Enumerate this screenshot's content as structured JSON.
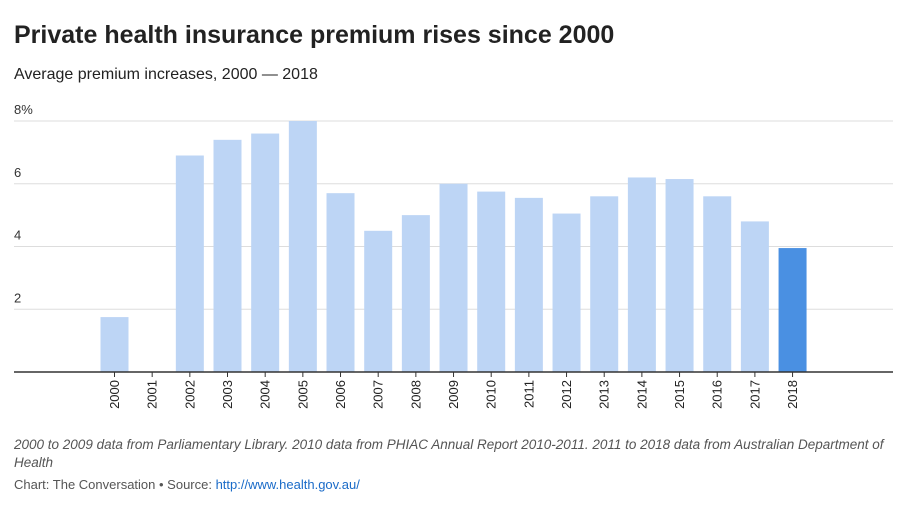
{
  "chart_data": {
    "type": "bar",
    "title": "Private health insurance premium rises since 2000",
    "subtitle": "Average premium increases, 2000 — 2018",
    "categories": [
      "2000",
      "2001",
      "2002",
      "2003",
      "2004",
      "2005",
      "2006",
      "2007",
      "2008",
      "2009",
      "2010",
      "2011",
      "2012",
      "2013",
      "2014",
      "2015",
      "2016",
      "2017",
      "2018"
    ],
    "values": [
      1.75,
      0,
      6.9,
      7.4,
      7.6,
      8.0,
      5.7,
      4.5,
      5.0,
      6.0,
      5.75,
      5.55,
      5.05,
      5.6,
      6.2,
      6.15,
      5.6,
      4.8,
      3.95
    ],
    "highlight_index": 18,
    "ylim": [
      0,
      8
    ],
    "yticks": [
      2,
      4,
      6,
      8
    ],
    "ytick_labels": [
      "2",
      "4",
      "6",
      "8%"
    ],
    "xlabel": "",
    "ylabel": "",
    "grid": true
  },
  "colors": {
    "bar": "#bdd5f5",
    "highlight": "#4a90e2",
    "grid": "#dddddd",
    "axis": "#333333"
  },
  "notes": "2000 to 2009 data from Parliamentary Library. 2010 data from PHIAC Annual Report 2010-2011. 2011 to 2018 data from Australian Department of Health",
  "credit": {
    "prefix": "Chart: The Conversation • Source: ",
    "link": "http://www.health.gov.au/"
  }
}
